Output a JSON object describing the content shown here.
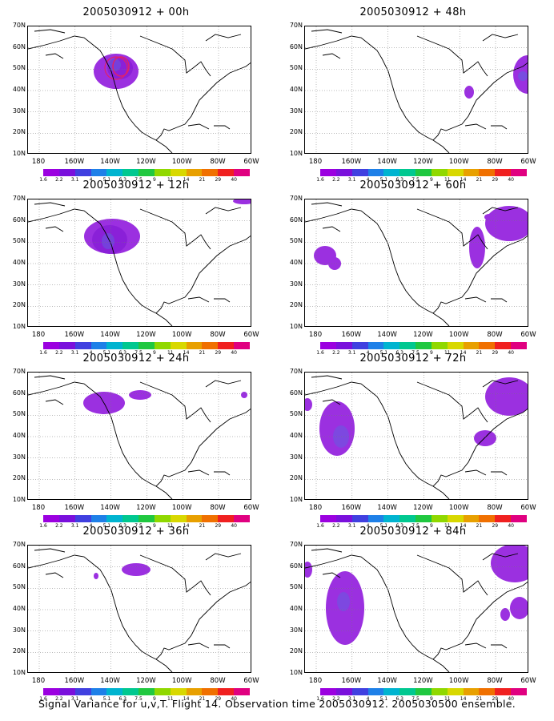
{
  "panels": [
    {
      "title": "2005030912 + 00h"
    },
    {
      "title": "2005030912 + 48h"
    },
    {
      "title": "2005030912 + 12h"
    },
    {
      "title": "2005030912 + 60h"
    },
    {
      "title": "2005030912 + 24h"
    },
    {
      "title": "2005030912 + 72h"
    },
    {
      "title": "2005030912 + 36h"
    },
    {
      "title": "2005030912 + 84h"
    }
  ],
  "y_labels": [
    "70N",
    "60N",
    "50N",
    "40N",
    "30N",
    "20N",
    "10N"
  ],
  "x_labels": [
    "180",
    "160W",
    "140W",
    "120W",
    "100W",
    "80W",
    "60W"
  ],
  "colorbar_labels": [
    "1.6",
    "2.2",
    "3.1",
    "4",
    "5.1",
    "6.3",
    "7.5",
    "9",
    "11",
    "14",
    "21",
    "29",
    "40"
  ],
  "colorbar_colors": [
    "#9b00e0",
    "#7a10dc",
    "#4040e0",
    "#1e80e8",
    "#00b4d0",
    "#00c890",
    "#20c840",
    "#90d800",
    "#d8d800",
    "#e8a000",
    "#f07000",
    "#f02020",
    "#e00080"
  ],
  "footer": "Signal Variance for u,v,T. Flight 14. Observation time 2005030912. 2005030500 ensemble."
}
